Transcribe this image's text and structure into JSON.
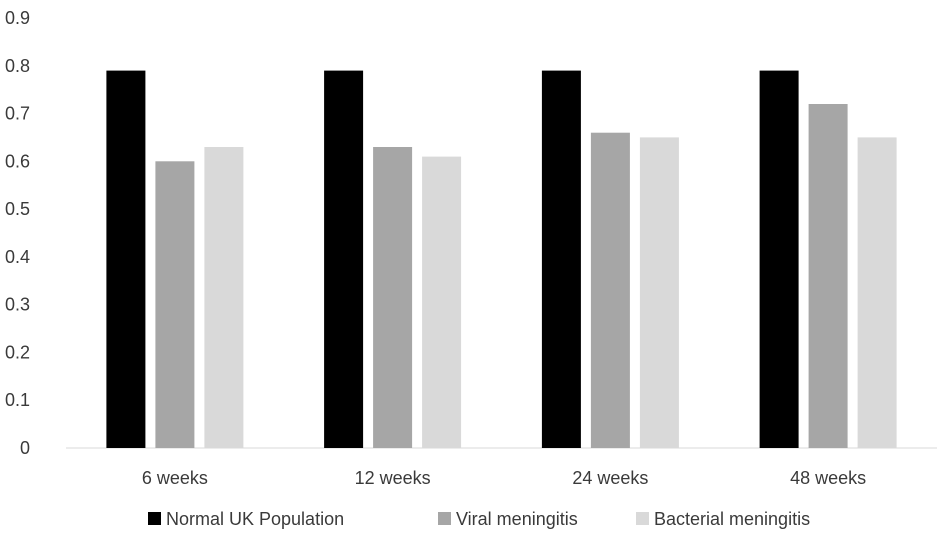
{
  "chart_data": {
    "type": "bar",
    "title": "",
    "xlabel": "",
    "ylabel": "",
    "categories": [
      "6 weeks",
      "12 weeks",
      "24 weeks",
      "48 weeks"
    ],
    "series": [
      {
        "name": "Normal UK Population",
        "color": "#000000",
        "values": [
          0.79,
          0.79,
          0.79,
          0.79
        ]
      },
      {
        "name": "Viral meningitis",
        "color": "#a6a6a6",
        "values": [
          0.6,
          0.63,
          0.66,
          0.72
        ]
      },
      {
        "name": "Bacterial meningitis",
        "color": "#d9d9d9",
        "values": [
          0.63,
          0.61,
          0.65,
          0.65
        ]
      }
    ],
    "ylim": [
      0,
      0.9
    ],
    "yticks": [
      "0",
      "0.1",
      "0.2",
      "0.3",
      "0.4",
      "0.5",
      "0.6",
      "0.7",
      "0.8",
      "0.9"
    ],
    "grid": false,
    "legend_position": "bottom"
  }
}
